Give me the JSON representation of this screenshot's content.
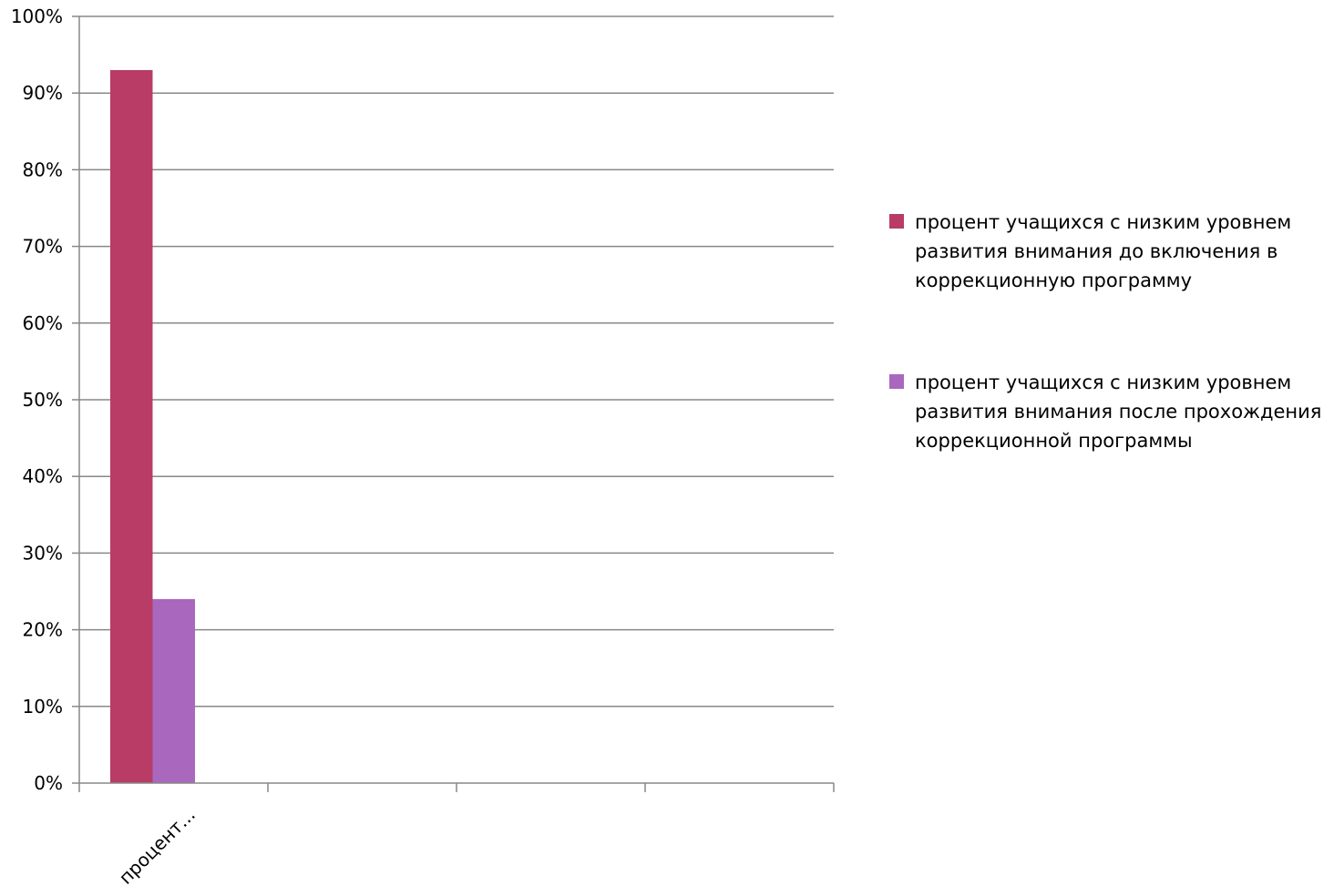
{
  "chart_data": {
    "type": "bar",
    "categories": [
      "процент...",
      "",
      "",
      ""
    ],
    "series": [
      {
        "name": "процент учащихся с низким уровнем развития внимания до включения в коррекционную программу",
        "values": [
          0.93,
          null,
          null,
          null
        ],
        "color": "#b83c65"
      },
      {
        "name": "процент учащихся с низким уровнем развития внимания после прохождения коррекционной программы",
        "values": [
          0.24,
          null,
          null,
          null
        ],
        "color": "#aa67be"
      }
    ],
    "ylim": [
      0,
      1
    ],
    "yticks": [
      {
        "value": 0,
        "label": "0%"
      },
      {
        "value": 0.1,
        "label": "10%"
      },
      {
        "value": 0.2,
        "label": "20%"
      },
      {
        "value": 0.3,
        "label": "30%"
      },
      {
        "value": 0.4,
        "label": "40%"
      },
      {
        "value": 0.5,
        "label": "50%"
      },
      {
        "value": 0.6,
        "label": "60%"
      },
      {
        "value": 0.7,
        "label": "70%"
      },
      {
        "value": 0.8,
        "label": "80%"
      },
      {
        "value": 0.9,
        "label": "90%"
      },
      {
        "value": 1,
        "label": "100%"
      }
    ],
    "grid": true,
    "legend_position": "right",
    "gridline_color": "#888888"
  }
}
